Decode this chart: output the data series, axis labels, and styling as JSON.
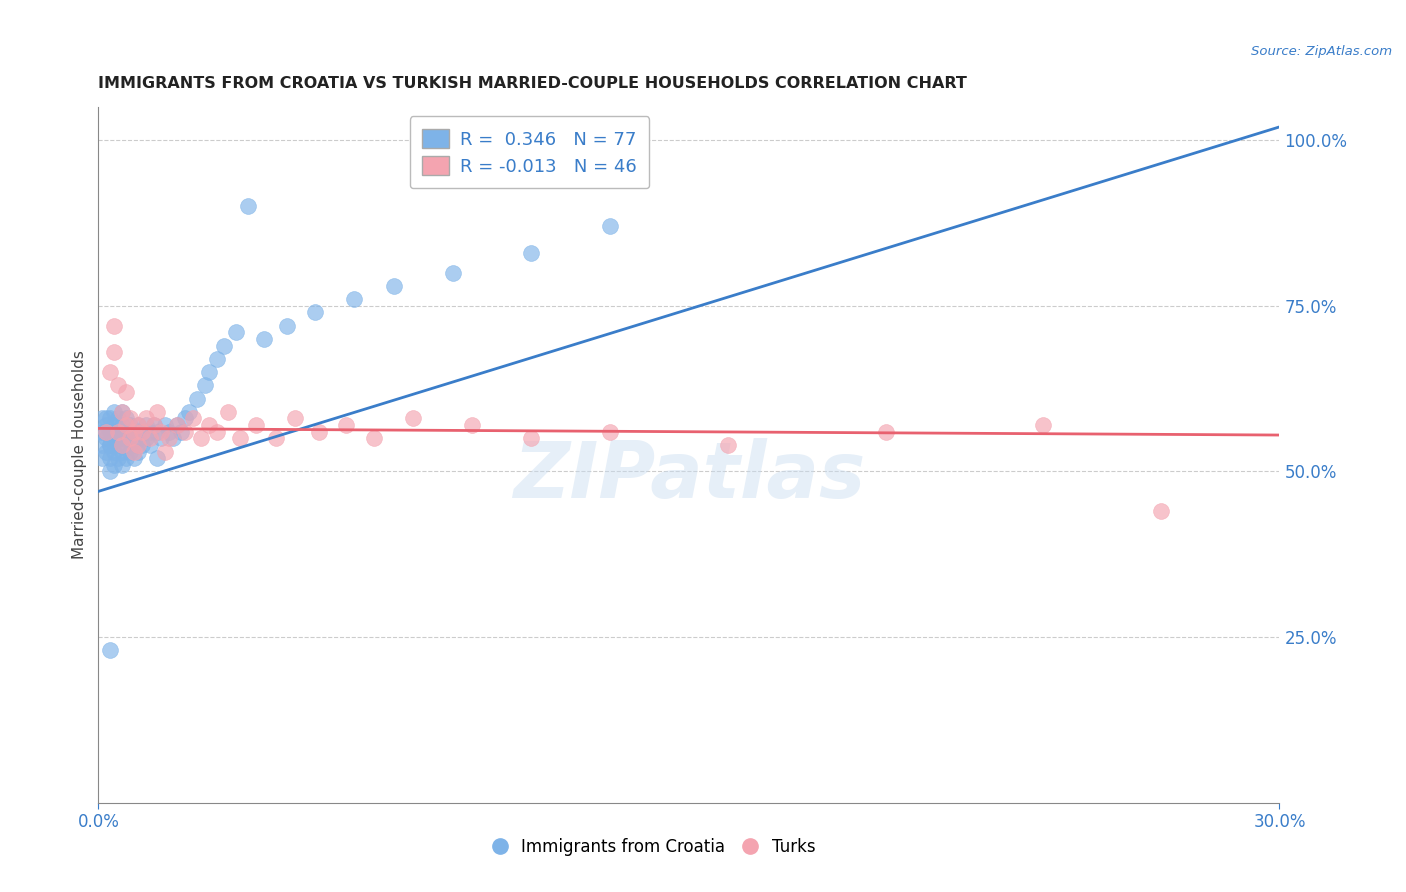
{
  "title": "IMMIGRANTS FROM CROATIA VS TURKISH MARRIED-COUPLE HOUSEHOLDS CORRELATION CHART",
  "source": "Source: ZipAtlas.com",
  "ylabel": "Married-couple Households",
  "xlim": [
    0.0,
    0.3
  ],
  "ylim": [
    0.0,
    1.05
  ],
  "ytick_positions": [
    0.25,
    0.5,
    0.75,
    1.0
  ],
  "ytick_labels": [
    "25.0%",
    "50.0%",
    "75.0%",
    "100.0%"
  ],
  "xtick_positions": [
    0.0,
    0.3
  ],
  "xtick_labels": [
    "0.0%",
    "30.0%"
  ],
  "blue_color": "#7EB3E8",
  "pink_color": "#F4A4B0",
  "line_blue": "#3A7DC9",
  "line_pink": "#E8616F",
  "watermark": "ZIPatlas",
  "grid_color": "#CCCCCC",
  "title_color": "#222222",
  "source_color": "#3A7DC9",
  "axis_tick_color": "#3A7DC9",
  "ylabel_color": "#444444",
  "blue_line_x0": 0.0,
  "blue_line_y0": 0.47,
  "blue_line_x1": 0.3,
  "blue_line_y1": 1.02,
  "pink_line_x0": 0.0,
  "pink_line_y0": 0.565,
  "pink_line_x1": 0.3,
  "pink_line_y1": 0.555,
  "blue_x": [
    0.001,
    0.001,
    0.001,
    0.001,
    0.002,
    0.002,
    0.002,
    0.002,
    0.002,
    0.003,
    0.003,
    0.003,
    0.003,
    0.003,
    0.003,
    0.004,
    0.004,
    0.004,
    0.004,
    0.004,
    0.004,
    0.005,
    0.005,
    0.005,
    0.005,
    0.005,
    0.006,
    0.006,
    0.006,
    0.006,
    0.006,
    0.007,
    0.007,
    0.007,
    0.007,
    0.008,
    0.008,
    0.008,
    0.009,
    0.009,
    0.009,
    0.01,
    0.01,
    0.01,
    0.011,
    0.011,
    0.012,
    0.012,
    0.013,
    0.013,
    0.014,
    0.015,
    0.015,
    0.016,
    0.017,
    0.018,
    0.019,
    0.02,
    0.021,
    0.022,
    0.023,
    0.025,
    0.027,
    0.028,
    0.03,
    0.032,
    0.035,
    0.038,
    0.042,
    0.048,
    0.055,
    0.065,
    0.075,
    0.09,
    0.11,
    0.13,
    0.003
  ],
  "blue_y": [
    0.56,
    0.58,
    0.54,
    0.52,
    0.55,
    0.57,
    0.53,
    0.56,
    0.58,
    0.54,
    0.56,
    0.52,
    0.54,
    0.5,
    0.58,
    0.55,
    0.53,
    0.57,
    0.51,
    0.56,
    0.59,
    0.54,
    0.56,
    0.52,
    0.55,
    0.58,
    0.53,
    0.55,
    0.51,
    0.57,
    0.59,
    0.54,
    0.56,
    0.52,
    0.58,
    0.55,
    0.53,
    0.57,
    0.54,
    0.56,
    0.52,
    0.55,
    0.57,
    0.53,
    0.56,
    0.54,
    0.55,
    0.57,
    0.56,
    0.54,
    0.57,
    0.56,
    0.52,
    0.55,
    0.57,
    0.56,
    0.55,
    0.57,
    0.56,
    0.58,
    0.59,
    0.61,
    0.63,
    0.65,
    0.67,
    0.69,
    0.71,
    0.9,
    0.7,
    0.72,
    0.74,
    0.76,
    0.78,
    0.8,
    0.83,
    0.87,
    0.23
  ],
  "pink_x": [
    0.002,
    0.003,
    0.004,
    0.004,
    0.005,
    0.005,
    0.006,
    0.006,
    0.007,
    0.007,
    0.008,
    0.008,
    0.009,
    0.009,
    0.01,
    0.01,
    0.011,
    0.012,
    0.013,
    0.014,
    0.015,
    0.016,
    0.017,
    0.018,
    0.02,
    0.022,
    0.024,
    0.026,
    0.028,
    0.03,
    0.033,
    0.036,
    0.04,
    0.045,
    0.05,
    0.056,
    0.063,
    0.07,
    0.08,
    0.095,
    0.11,
    0.13,
    0.16,
    0.2,
    0.24,
    0.27
  ],
  "pink_y": [
    0.56,
    0.65,
    0.68,
    0.72,
    0.63,
    0.56,
    0.59,
    0.54,
    0.62,
    0.57,
    0.58,
    0.55,
    0.56,
    0.53,
    0.57,
    0.54,
    0.56,
    0.58,
    0.55,
    0.57,
    0.59,
    0.56,
    0.53,
    0.55,
    0.57,
    0.56,
    0.58,
    0.55,
    0.57,
    0.56,
    0.59,
    0.55,
    0.57,
    0.55,
    0.58,
    0.56,
    0.57,
    0.55,
    0.58,
    0.57,
    0.55,
    0.56,
    0.54,
    0.56,
    0.57,
    0.44
  ]
}
